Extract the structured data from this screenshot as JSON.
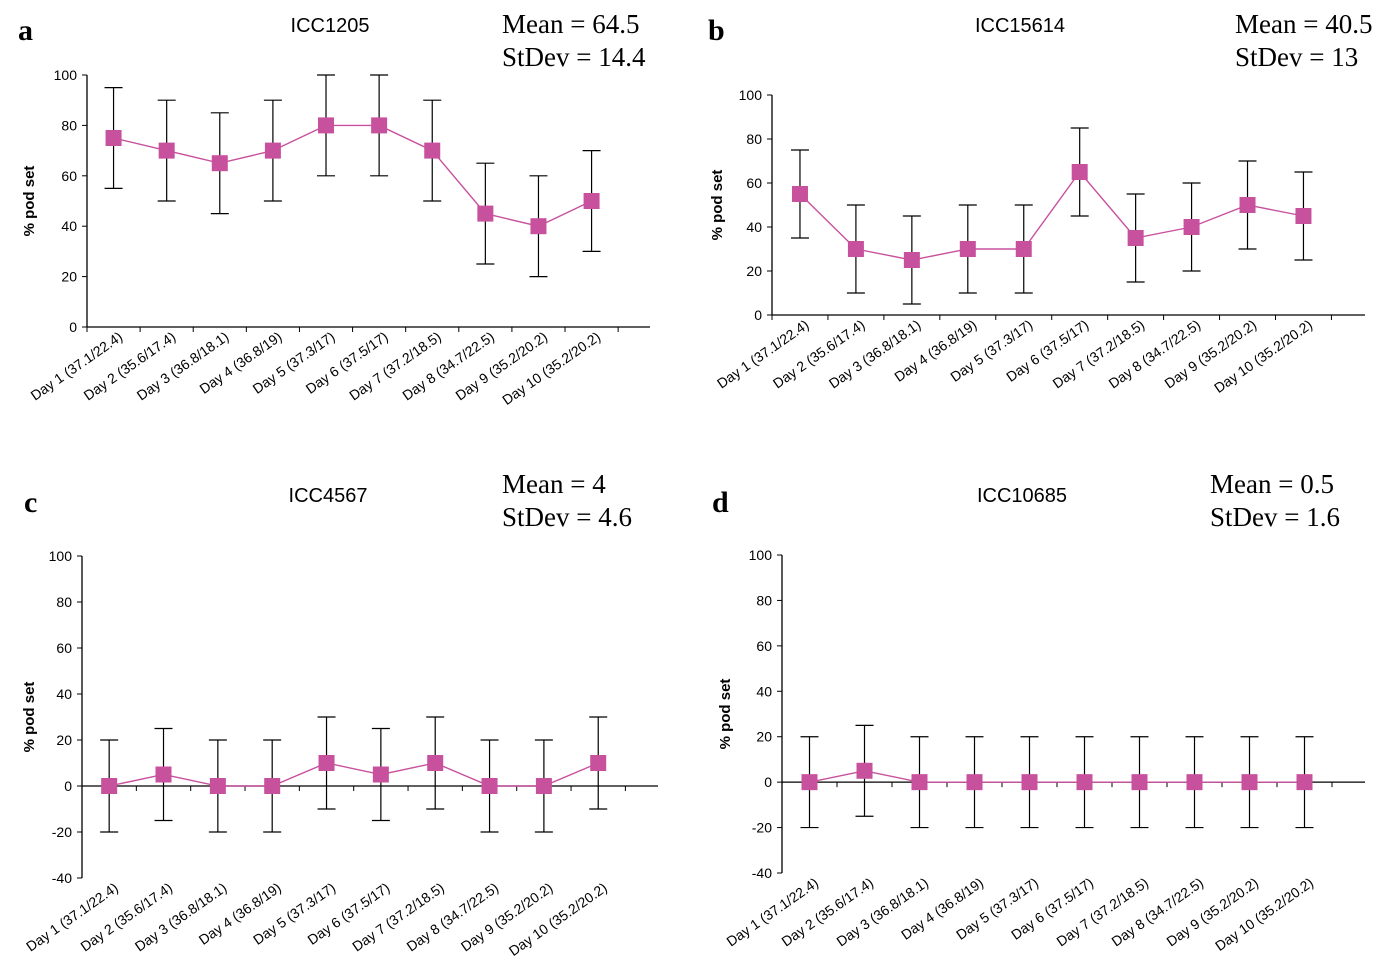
{
  "colors": {
    "series": "#c8519e",
    "axis": "#000000"
  },
  "chart_data": [
    {
      "panel": "a",
      "type": "line",
      "title": "ICC1205",
      "stats": [
        "Mean = 64.5",
        "StDev = 14.4"
      ],
      "ylabel": "% pod set",
      "ylim": [
        0,
        100
      ],
      "yticks": [
        0,
        20,
        40,
        60,
        80,
        100
      ],
      "categories": [
        "Day 1 (37.1/22.4)",
        "Day 2 (35.6/17.4)",
        "Day 3 (36.8/18.1)",
        "Day 4 (36.8/19)",
        "Day 5 (37.3/17)",
        "Day 6 (37.5/17)",
        "Day 7 (37.2/18.5)",
        "Day 8 (34.7/22.5)",
        "Day 9 (35.2/20.2)",
        "Day 10 (35.2/20.2)"
      ],
      "values": [
        75,
        70,
        65,
        70,
        80,
        80,
        70,
        45,
        40,
        50
      ],
      "error": [
        20,
        20,
        20,
        20,
        20,
        20,
        20,
        20,
        20,
        20
      ]
    },
    {
      "panel": "b",
      "type": "line",
      "title": "ICC15614",
      "stats": [
        "Mean = 40.5",
        "StDev = 13"
      ],
      "ylabel": "% pod set",
      "ylim": [
        0,
        100
      ],
      "yticks": [
        0,
        20,
        40,
        60,
        80,
        100
      ],
      "categories": [
        "Day 1 (37.1/22.4)",
        "Day 2 (35.6/17.4)",
        "Day 3 (36.8/18.1)",
        "Day 4 (36.8/19)",
        "Day 5 (37.3/17)",
        "Day 6 (37.5/17)",
        "Day 7 (37.2/18.5)",
        "Day 8 (34.7/22.5)",
        "Day 9 (35.2/20.2)",
        "Day 10 (35.2/20.2)"
      ],
      "values": [
        55,
        30,
        25,
        30,
        30,
        65,
        35,
        40,
        50,
        45
      ],
      "error": [
        20,
        20,
        20,
        20,
        20,
        20,
        20,
        20,
        20,
        20
      ]
    },
    {
      "panel": "c",
      "type": "line",
      "title": "ICC4567",
      "stats": [
        "Mean = 4",
        "StDev = 4.6"
      ],
      "ylabel": "% pod set",
      "ylim": [
        -40,
        100
      ],
      "yticks": [
        -40,
        -20,
        0,
        20,
        40,
        60,
        80,
        100
      ],
      "categories": [
        "Day 1 (37.1/22.4)",
        "Day 2 (35.6/17.4)",
        "Day 3 (36.8/18.1)",
        "Day 4 (36.8/19)",
        "Day 5 (37.3/17)",
        "Day 6 (37.5/17)",
        "Day 7 (37.2/18.5)",
        "Day 8 (34.7/22.5)",
        "Day 9 (35.2/20.2)",
        "Day 10 (35.2/20.2)"
      ],
      "values": [
        0,
        5,
        0,
        0,
        10,
        5,
        10,
        0,
        0,
        10
      ],
      "error": [
        20,
        20,
        20,
        20,
        20,
        20,
        20,
        20,
        20,
        20
      ]
    },
    {
      "panel": "d",
      "type": "line",
      "title": "ICC10685",
      "stats": [
        "Mean = 0.5",
        "StDev = 1.6"
      ],
      "ylabel": "% pod set",
      "ylim": [
        -40,
        100
      ],
      "yticks": [
        -40,
        -20,
        0,
        20,
        40,
        60,
        80,
        100
      ],
      "categories": [
        "Day 1 (37.1/22.4)",
        "Day 2 (35.6/17.4)",
        "Day 3 (36.8/18.1)",
        "Day 4 (36.8/19)",
        "Day 5 (37.3/17)",
        "Day 6 (37.5/17)",
        "Day 7 (37.2/18.5)",
        "Day 8 (34.7/22.5)",
        "Day 9 (35.2/20.2)",
        "Day 10 (35.2/20.2)"
      ],
      "values": [
        0,
        5,
        0,
        0,
        0,
        0,
        0,
        0,
        0,
        0
      ],
      "error": [
        20,
        20,
        20,
        20,
        20,
        20,
        20,
        20,
        20,
        20
      ]
    }
  ]
}
